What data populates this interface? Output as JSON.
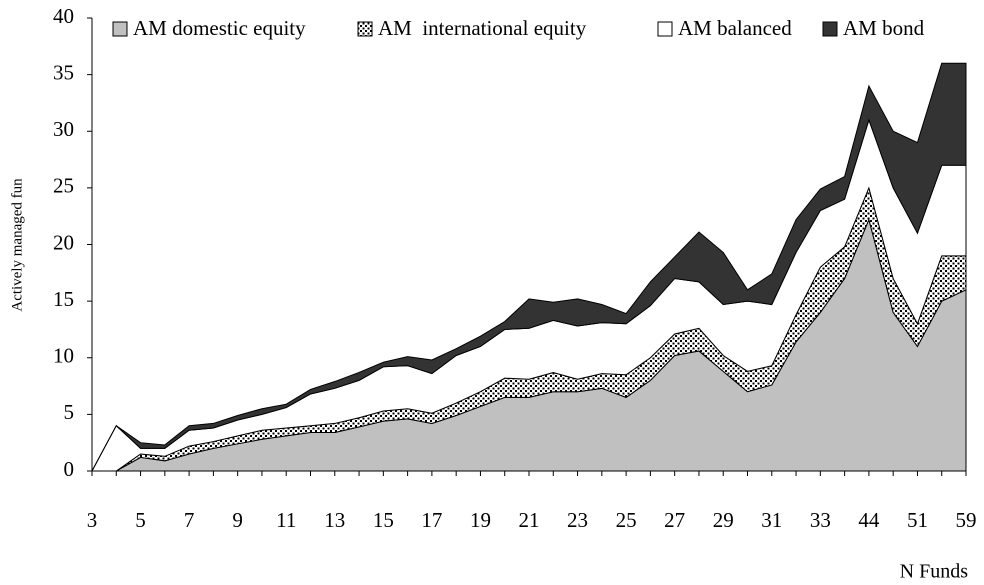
{
  "chart_data": {
    "type": "stacked-area",
    "y_label": "Actively managed fun",
    "x_label": "N Funds",
    "categories": [
      "3",
      null,
      "5",
      null,
      "7",
      null,
      "9",
      null,
      "11",
      null,
      "13",
      null,
      "15",
      null,
      "17",
      null,
      "19",
      null,
      "21",
      null,
      "23",
      null,
      "25",
      null,
      "27",
      null,
      "29",
      null,
      "31",
      null,
      "33",
      null,
      "44",
      null,
      "51",
      null,
      "59"
    ],
    "ylim": [
      0,
      40
    ],
    "yticks": [
      0,
      5,
      10,
      15,
      20,
      25,
      30,
      35,
      40
    ],
    "grid": false,
    "legend": "top",
    "series": [
      {
        "name": "AM domestic equity",
        "color": "#c0c0c0",
        "values": [
          0,
          0,
          1.2,
          0.9,
          1.5,
          2.0,
          2.4,
          2.8,
          3.1,
          3.4,
          3.4,
          3.9,
          4.4,
          4.6,
          4.2,
          4.9,
          5.7,
          6.5,
          6.5,
          7.0,
          7.0,
          7.3,
          6.5,
          8.0,
          10.2,
          10.6,
          8.8,
          7.0,
          7.6,
          11.4,
          14.0,
          17.0,
          22.2,
          14.0,
          11.0,
          15.0,
          16.0
        ]
      },
      {
        "name": "AM  international equity",
        "color": "#ffffff",
        "pattern": "dots",
        "values": [
          0,
          0,
          0.3,
          0.4,
          0.7,
          0.6,
          0.7,
          0.8,
          0.7,
          0.6,
          0.8,
          0.8,
          0.9,
          0.9,
          0.9,
          1.1,
          1.3,
          1.7,
          1.6,
          1.7,
          1.1,
          1.3,
          2.0,
          2.0,
          1.9,
          2.0,
          1.4,
          1.8,
          1.7,
          2.4,
          4.0,
          2.8,
          2.8,
          3.0,
          2.0,
          4.0,
          3.0
        ]
      },
      {
        "name": "AM balanced",
        "color": "#ffffff",
        "values": [
          0,
          4,
          0.5,
          0.7,
          1.4,
          1.2,
          1.4,
          1.4,
          1.8,
          2.8,
          3.1,
          3.3,
          3.9,
          3.8,
          3.5,
          4.2,
          4.0,
          4.3,
          4.5,
          4.6,
          4.7,
          4.5,
          4.5,
          4.6,
          4.9,
          4.1,
          4.5,
          6.2,
          5.4,
          5.5,
          5.0,
          4.2,
          6.0,
          8.0,
          8.0,
          8.0,
          8.0
        ]
      },
      {
        "name": "AM bond",
        "color": "#333333",
        "values": [
          0,
          0,
          0.5,
          0.3,
          0.4,
          0.4,
          0.4,
          0.5,
          0.3,
          0.4,
          0.6,
          0.7,
          0.4,
          0.8,
          1.2,
          0.6,
          0.9,
          0.7,
          2.6,
          1.6,
          2.4,
          1.6,
          0.9,
          2.1,
          1.9,
          4.4,
          4.6,
          1.0,
          2.7,
          2.9,
          1.9,
          2.0,
          3.0,
          5.0,
          8.0,
          9.0,
          9.0
        ]
      }
    ]
  }
}
